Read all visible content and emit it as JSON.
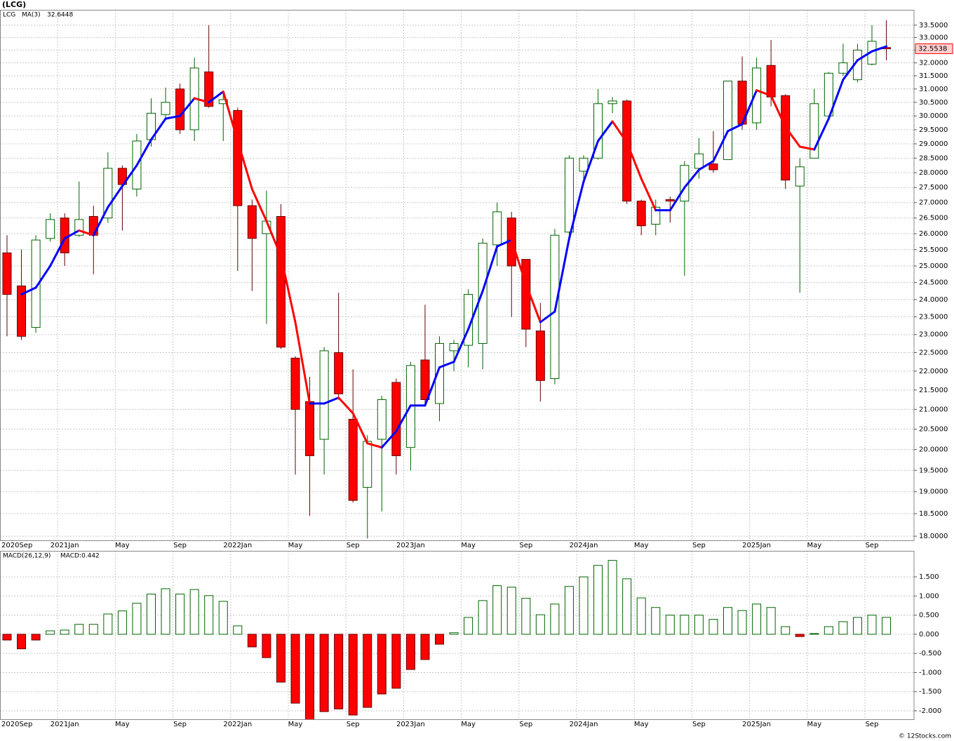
{
  "title": "(LCG)",
  "watermark": "© 12Stocks.com",
  "chart_data": [
    {
      "type": "candlestick",
      "symbol": "LCG",
      "log_scale": true,
      "grid": true,
      "up_color": "#006400",
      "down_color": "#ff0000",
      "categories": [
        "2020Sep",
        null,
        null,
        null,
        "2021Jan",
        null,
        null,
        null,
        "May",
        null,
        null,
        null,
        "Sep",
        null,
        null,
        null,
        "2022Jan",
        null,
        null,
        null,
        "May",
        null,
        null,
        null,
        "Sep",
        null,
        null,
        null,
        "2023Jan",
        null,
        null,
        null,
        "May",
        null,
        null,
        null,
        "Sep",
        null,
        null,
        null,
        "2024Jan",
        null,
        null,
        null,
        "May",
        null,
        null,
        null,
        "Sep",
        null,
        null,
        null,
        "2025Jan",
        null,
        null,
        null,
        "May",
        null,
        null,
        null,
        "Sep",
        null
      ],
      "open": [
        25.4,
        24.4,
        23.2,
        25.85,
        26.5,
        25.95,
        26.55,
        26.5,
        28.15,
        27.45,
        29.15,
        30.05,
        31.0,
        29.5,
        31.65,
        30.45,
        30.2,
        26.9,
        26.0,
        26.55,
        22.35,
        21.2,
        20.25,
        22.5,
        20.75,
        19.1,
        20.25,
        21.7,
        20.05,
        22.3,
        21.15,
        22.55,
        22.7,
        22.75,
        25.65,
        26.5,
        25.2,
        23.1,
        21.8,
        26.05,
        28.05,
        28.5,
        30.45,
        30.55,
        27.05,
        26.3,
        27.1,
        27.05,
        28.15,
        28.3,
        28.45,
        31.3,
        29.75,
        31.9,
        30.75,
        27.55,
        28.5,
        30.0,
        31.6,
        31.35,
        31.95,
        32.6
      ],
      "high": [
        25.95,
        25.5,
        25.95,
        26.65,
        26.65,
        27.7,
        26.9,
        28.7,
        28.25,
        29.35,
        30.65,
        31.05,
        31.2,
        32.2,
        33.5,
        30.9,
        30.3,
        27.1,
        27.4,
        26.95,
        22.4,
        21.85,
        22.65,
        24.2,
        22.05,
        20.35,
        21.35,
        21.8,
        22.25,
        23.85,
        22.95,
        22.85,
        24.3,
        25.85,
        27.0,
        26.7,
        25.2,
        23.9,
        26.15,
        28.6,
        28.6,
        31.0,
        30.7,
        30.6,
        27.1,
        27.1,
        27.2,
        28.4,
        29.2,
        29.45,
        31.3,
        32.25,
        32.2,
        32.9,
        30.8,
        28.5,
        31.0,
        31.65,
        32.75,
        32.75,
        33.5,
        33.7
      ],
      "low": [
        22.95,
        22.85,
        23.05,
        25.75,
        25.0,
        25.9,
        24.75,
        26.35,
        26.1,
        27.2,
        28.9,
        29.9,
        29.35,
        29.1,
        30.3,
        29.1,
        24.85,
        24.25,
        23.3,
        22.6,
        19.4,
        18.45,
        19.4,
        21.25,
        18.75,
        17.95,
        18.55,
        19.4,
        19.5,
        21.1,
        20.7,
        22.0,
        22.1,
        22.05,
        25.0,
        23.5,
        22.65,
        21.2,
        21.65,
        25.85,
        27.65,
        28.45,
        30.1,
        26.95,
        25.95,
        25.95,
        26.35,
        24.7,
        27.8,
        28.0,
        28.45,
        29.5,
        29.5,
        30.35,
        27.45,
        24.2,
        28.5,
        29.95,
        31.5,
        31.25,
        31.9,
        32.1
      ],
      "close": [
        24.15,
        22.95,
        25.8,
        26.45,
        25.4,
        26.45,
        25.95,
        28.15,
        27.6,
        29.1,
        30.1,
        30.5,
        29.5,
        31.8,
        30.35,
        30.6,
        26.9,
        25.85,
        26.4,
        22.65,
        21.0,
        19.85,
        22.55,
        21.4,
        18.8,
        20.2,
        21.25,
        19.85,
        22.15,
        21.25,
        22.75,
        22.75,
        24.15,
        25.7,
        26.7,
        25.0,
        23.15,
        21.75,
        25.95,
        28.5,
        28.5,
        30.45,
        30.55,
        27.05,
        26.25,
        26.85,
        27.05,
        28.25,
        28.65,
        28.1,
        31.3,
        29.7,
        31.8,
        30.7,
        27.75,
        28.2,
        30.45,
        31.6,
        32.0,
        32.5,
        32.85,
        32.5538
      ],
      "ma": {
        "name": "MA(3)",
        "up_color": "#0000ff",
        "down_color": "#ff0000",
        "values": [
          null,
          24.15,
          24.35,
          25.0,
          25.85,
          26.1,
          25.95,
          26.85,
          27.55,
          28.25,
          29.15,
          29.9,
          30.0,
          30.65,
          30.5,
          30.9,
          29.1,
          27.45,
          26.4,
          25.3,
          23.35,
          21.15,
          21.15,
          21.3,
          20.9,
          20.15,
          20.05,
          20.45,
          21.1,
          21.1,
          22.1,
          22.25,
          23.15,
          24.25,
          25.6,
          25.8,
          24.45,
          23.35,
          23.65,
          25.85,
          27.7,
          29.1,
          29.8,
          29.05,
          27.8,
          26.75,
          26.75,
          27.5,
          28.1,
          28.4,
          29.45,
          29.7,
          30.95,
          30.75,
          29.6,
          28.9,
          28.8,
          29.9,
          31.35,
          32.1,
          32.45,
          32.6448
        ]
      },
      "ylim": [
        17.91,
        34.13
      ],
      "yticks": [
        {
          "value": 18,
          "label": "18.0000"
        },
        {
          "value": 18.5,
          "label": "18.5000"
        },
        {
          "value": 19,
          "label": "19.0000"
        },
        {
          "value": 19.5,
          "label": "19.5000"
        },
        {
          "value": 20,
          "label": "20.0000"
        },
        {
          "value": 20.5,
          "label": "20.5000"
        },
        {
          "value": 21,
          "label": "21.0000"
        },
        {
          "value": 21.5,
          "label": "21.5000"
        },
        {
          "value": 22,
          "label": "22.0000"
        },
        {
          "value": 22.5,
          "label": "22.5000"
        },
        {
          "value": 23,
          "label": "23.0000"
        },
        {
          "value": 23.5,
          "label": "23.5000"
        },
        {
          "value": 24,
          "label": "24.0000"
        },
        {
          "value": 24.5,
          "label": "24.5000"
        },
        {
          "value": 25,
          "label": "25.0000"
        },
        {
          "value": 25.5,
          "label": "25.5000"
        },
        {
          "value": 26,
          "label": "26.0000"
        },
        {
          "value": 26.5,
          "label": "26.5000"
        },
        {
          "value": 27,
          "label": "27.0000"
        },
        {
          "value": 27.5,
          "label": "27.5000"
        },
        {
          "value": 28,
          "label": "28.0000"
        },
        {
          "value": 28.5,
          "label": "28.5000"
        },
        {
          "value": 29,
          "label": "29.0000"
        },
        {
          "value": 29.5,
          "label": "29.5000"
        },
        {
          "value": 30,
          "label": "30.0000"
        },
        {
          "value": 30.5,
          "label": "30.5000"
        },
        {
          "value": 31,
          "label": "31.0000"
        },
        {
          "value": 31.5,
          "label": "31.5000"
        },
        {
          "value": 32,
          "label": "32.0000"
        },
        {
          "value": 32.5,
          "label": "32.5000"
        },
        {
          "value": 33,
          "label": "33.0000"
        },
        {
          "value": 33.5,
          "label": "33.5000"
        }
      ]
    },
    {
      "type": "bar",
      "name": "MACD(26,12,9)",
      "legend_label": "MACD:0.442",
      "grid": true,
      "up_color": "#006400",
      "down_color": "#ff0000",
      "categories": [
        "2020Sep",
        null,
        null,
        null,
        "2021Jan",
        null,
        null,
        null,
        "May",
        null,
        null,
        null,
        "Sep",
        null,
        null,
        null,
        "2022Jan",
        null,
        null,
        null,
        "May",
        null,
        null,
        null,
        "Sep",
        null,
        null,
        null,
        "2023Jan",
        null,
        null,
        null,
        "May",
        null,
        null,
        null,
        "Sep",
        null,
        null,
        null,
        "2024Jan",
        null,
        null,
        null,
        "May",
        null,
        null,
        null,
        "Sep",
        null,
        null,
        null,
        "2025Jan",
        null,
        null,
        null,
        "May",
        null,
        null,
        null,
        "Sep",
        null
      ],
      "values": [
        -0.15,
        -0.38,
        -0.15,
        0.09,
        0.11,
        0.26,
        0.26,
        0.53,
        0.61,
        0.81,
        1.05,
        1.19,
        1.05,
        1.17,
        1.01,
        0.86,
        0.22,
        -0.33,
        -0.61,
        -1.25,
        -1.8,
        -2.3,
        -2.02,
        -1.95,
        -2.11,
        -1.91,
        -1.56,
        -1.41,
        -0.92,
        -0.66,
        -0.26,
        0.04,
        0.44,
        0.88,
        1.27,
        1.23,
        0.94,
        0.51,
        0.79,
        1.25,
        1.5,
        1.8,
        1.93,
        1.45,
        0.95,
        0.7,
        0.5,
        0.5,
        0.5,
        0.39,
        0.7,
        0.62,
        0.79,
        0.7,
        0.2,
        -0.06,
        0.02,
        0.2,
        0.33,
        0.44,
        0.5,
        0.442
      ],
      "ylim": [
        -2.22,
        2.18
      ],
      "yticks": [
        {
          "value": -2,
          "label": "-2.000"
        },
        {
          "value": -1.5,
          "label": "-1.500"
        },
        {
          "value": -1,
          "label": "-1.000"
        },
        {
          "value": -0.5,
          "label": "-0.500"
        },
        {
          "value": 0,
          "label": "0.000"
        },
        {
          "value": 0.5,
          "label": "0.500"
        },
        {
          "value": 1,
          "label": "1.000"
        },
        {
          "value": 1.5,
          "label": "1.500"
        }
      ]
    }
  ]
}
